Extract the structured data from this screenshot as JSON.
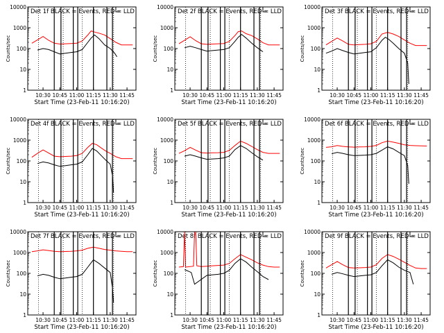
{
  "chart_data": [
    {
      "type": "line",
      "title": "Det 1f BLACK = Events, RED = LLD",
      "xlabel": "Start Time (23-Feb-11 10:16:20)",
      "ylabel": "Counts/sec",
      "yscale": "log",
      "ylim": [
        1,
        10000
      ],
      "xlim": [
        "10:16:20",
        "11:53:00"
      ],
      "xticks": [
        "10:30",
        "10:45",
        "11:00",
        "11:15",
        "11:30",
        "11:45"
      ],
      "yticks": [
        "1",
        "10",
        "100",
        "1000",
        "10000"
      ],
      "series": [
        {
          "color": "#ff0000",
          "x": [
            "10:20",
            "10:25",
            "10:30",
            "10:35",
            "10:40",
            "10:45",
            "10:50",
            "10:55",
            "11:00",
            "11:05",
            "11:10",
            "11:13",
            "11:16",
            "11:20",
            "11:25",
            "11:30",
            "11:35",
            "11:40",
            "11:45",
            "11:50"
          ],
          "values": [
            180,
            260,
            380,
            250,
            180,
            165,
            170,
            175,
            180,
            230,
            450,
            700,
            620,
            550,
            450,
            300,
            200,
            150,
            150,
            150
          ]
        },
        {
          "color": "#000000",
          "x": [
            "10:25",
            "10:30",
            "10:35",
            "10:40",
            "10:45",
            "10:50",
            "10:55",
            "11:00",
            "11:05",
            "11:10",
            "11:13",
            "11:16",
            "11:20",
            "11:25",
            "11:30",
            "11:34",
            "11:36"
          ],
          "values": [
            85,
            100,
            90,
            70,
            55,
            60,
            65,
            70,
            90,
            200,
            320,
            450,
            300,
            150,
            100,
            60,
            40
          ]
        }
      ]
    },
    {
      "type": "line",
      "title": "Det 2f BLACK = Events, RED = LLD",
      "xlabel": "Start Time (23-Feb-11 10:16:20)",
      "ylabel": "Counts/sec",
      "yscale": "log",
      "ylim": [
        1,
        10000
      ],
      "xlim": [
        "10:16:20",
        "11:53:00"
      ],
      "xticks": [
        "10:30",
        "10:45",
        "11:00",
        "11:15",
        "11:30",
        "11:45"
      ],
      "yticks": [
        "1",
        "10",
        "100",
        "1000",
        "10000"
      ],
      "series": [
        {
          "color": "#ff0000",
          "x": [
            "10:20",
            "10:25",
            "10:30",
            "10:35",
            "10:40",
            "10:45",
            "10:50",
            "10:55",
            "11:00",
            "11:05",
            "11:10",
            "11:13",
            "11:16",
            "11:20",
            "11:25",
            "11:30",
            "11:35",
            "11:40",
            "11:45",
            "11:50"
          ],
          "values": [
            170,
            250,
            370,
            240,
            170,
            160,
            165,
            170,
            175,
            220,
            420,
            650,
            700,
            520,
            420,
            290,
            190,
            150,
            150,
            150
          ]
        },
        {
          "color": "#000000",
          "x": [
            "10:25",
            "10:30",
            "10:35",
            "10:40",
            "10:45",
            "10:50",
            "10:55",
            "11:00",
            "11:05",
            "11:10",
            "11:13",
            "11:16",
            "11:20",
            "11:25",
            "11:30",
            "11:35"
          ],
          "values": [
            110,
            130,
            110,
            90,
            75,
            80,
            85,
            90,
            110,
            220,
            350,
            480,
            320,
            180,
            110,
            70
          ]
        }
      ]
    },
    {
      "type": "line",
      "title": "Det 3f BLACK = Events, RED = LLD",
      "xlabel": "Start Time (23-Feb-11 10:16:20)",
      "ylabel": "Counts/sec",
      "yscale": "log",
      "ylim": [
        1,
        10000
      ],
      "xlim": [
        "10:16:20",
        "11:53:00"
      ],
      "xticks": [
        "10:30",
        "10:45",
        "11:00",
        "11:15",
        "11:30",
        "11:45"
      ],
      "yticks": [
        "1",
        "10",
        "100",
        "1000",
        "10000"
      ],
      "series": [
        {
          "color": "#ff0000",
          "x": [
            "10:20",
            "10:25",
            "10:30",
            "10:35",
            "10:40",
            "10:45",
            "10:50",
            "10:55",
            "11:00",
            "11:05",
            "11:10",
            "11:15",
            "11:20",
            "11:25",
            "11:30",
            "11:35",
            "11:40",
            "11:45",
            "11:50"
          ],
          "values": [
            150,
            220,
            320,
            230,
            160,
            150,
            155,
            160,
            170,
            220,
            500,
            600,
            500,
            380,
            260,
            180,
            140,
            140,
            140
          ]
        },
        {
          "color": "#000000",
          "x": [
            "10:20",
            "10:25",
            "10:30",
            "10:35",
            "10:40",
            "10:45",
            "10:50",
            "10:55",
            "11:00",
            "11:05",
            "11:10",
            "11:13",
            "11:16",
            "11:20",
            "11:25",
            "11:30",
            "11:33",
            "11:34"
          ],
          "values": [
            60,
            75,
            100,
            80,
            65,
            55,
            60,
            65,
            70,
            110,
            250,
            350,
            280,
            180,
            100,
            60,
            20,
            2
          ]
        }
      ]
    },
    {
      "type": "line",
      "title": "Det 4f BLACK = Events, RED = LLD",
      "xlabel": "Start Time (23-Feb-11 10:16:20)",
      "ylabel": "Counts/sec",
      "yscale": "log",
      "ylim": [
        1,
        10000
      ],
      "xlim": [
        "10:16:20",
        "11:53:00"
      ],
      "xticks": [
        "10:30",
        "10:45",
        "11:00",
        "11:15",
        "11:30",
        "11:45"
      ],
      "yticks": [
        "1",
        "10",
        "100",
        "1000",
        "10000"
      ],
      "series": [
        {
          "color": "#ff0000",
          "x": [
            "10:20",
            "10:25",
            "10:30",
            "10:35",
            "10:40",
            "10:45",
            "10:50",
            "10:55",
            "11:00",
            "11:05",
            "11:10",
            "11:14",
            "11:18",
            "11:22",
            "11:26",
            "11:30",
            "11:35",
            "11:40",
            "11:45",
            "11:50"
          ],
          "values": [
            150,
            230,
            340,
            240,
            170,
            160,
            165,
            170,
            180,
            230,
            450,
            700,
            600,
            420,
            300,
            230,
            160,
            130,
            130,
            130
          ]
        },
        {
          "color": "#000000",
          "x": [
            "10:25",
            "10:30",
            "10:35",
            "10:40",
            "10:45",
            "10:50",
            "10:55",
            "11:00",
            "11:05",
            "11:10",
            "11:14",
            "11:18",
            "11:22",
            "11:26",
            "11:30",
            "11:32",
            "11:33"
          ],
          "values": [
            75,
            90,
            80,
            65,
            55,
            60,
            65,
            70,
            90,
            200,
            400,
            300,
            180,
            110,
            70,
            20,
            3
          ]
        }
      ]
    },
    {
      "type": "line",
      "title": "Det 5f BLACK = Events, RED = LLD",
      "xlabel": "Start Time (23-Feb-11 10:16:20)",
      "ylabel": "Counts/sec",
      "yscale": "log",
      "ylim": [
        1,
        10000
      ],
      "xlim": [
        "10:16:20",
        "11:53:00"
      ],
      "xticks": [
        "10:30",
        "10:45",
        "11:00",
        "11:15",
        "11:30",
        "11:45"
      ],
      "yticks": [
        "1",
        "10",
        "100",
        "1000",
        "10000"
      ],
      "series": [
        {
          "color": "#ff0000",
          "x": [
            "10:20",
            "10:25",
            "10:30",
            "10:35",
            "10:40",
            "10:45",
            "10:50",
            "10:55",
            "11:00",
            "11:05",
            "11:10",
            "11:15",
            "11:20",
            "11:25",
            "11:30",
            "11:35",
            "11:40",
            "11:45",
            "11:50"
          ],
          "values": [
            230,
            310,
            450,
            330,
            250,
            240,
            245,
            250,
            260,
            320,
            550,
            900,
            700,
            500,
            350,
            260,
            230,
            230,
            230
          ]
        },
        {
          "color": "#000000",
          "x": [
            "10:25",
            "10:30",
            "10:35",
            "10:40",
            "10:45",
            "10:50",
            "10:55",
            "11:00",
            "11:05",
            "11:10",
            "11:15",
            "11:20",
            "11:25",
            "11:30",
            "11:35"
          ],
          "values": [
            170,
            200,
            170,
            140,
            120,
            125,
            130,
            140,
            170,
            350,
            550,
            400,
            250,
            160,
            110
          ]
        }
      ]
    },
    {
      "type": "line",
      "title": "Det 6f BLACK = Events, RED = LLD",
      "xlabel": "Start Time (23-Feb-11 10:16:20)",
      "ylabel": "Counts/sec",
      "yscale": "log",
      "ylim": [
        1,
        10000
      ],
      "xlim": [
        "10:16:20",
        "11:53:00"
      ],
      "xticks": [
        "10:30",
        "10:45",
        "11:00",
        "11:15",
        "11:30",
        "11:45"
      ],
      "yticks": [
        "1",
        "10",
        "100",
        "1000",
        "10000"
      ],
      "series": [
        {
          "color": "#ff0000",
          "x": [
            "10:20",
            "10:25",
            "10:30",
            "10:35",
            "10:40",
            "10:45",
            "10:50",
            "10:55",
            "11:00",
            "11:05",
            "11:10",
            "11:15",
            "11:20",
            "11:25",
            "11:30",
            "11:35",
            "11:40",
            "11:45",
            "11:50"
          ],
          "values": [
            450,
            480,
            550,
            500,
            470,
            460,
            470,
            480,
            500,
            560,
            750,
            900,
            800,
            700,
            600,
            560,
            540,
            530,
            520
          ]
        },
        {
          "color": "#000000",
          "x": [
            "10:25",
            "10:30",
            "10:35",
            "10:40",
            "10:45",
            "10:50",
            "10:55",
            "11:00",
            "11:05",
            "11:10",
            "11:15",
            "11:20",
            "11:25",
            "11:30",
            "11:33",
            "11:34"
          ],
          "values": [
            220,
            260,
            230,
            200,
            180,
            185,
            190,
            200,
            230,
            330,
            480,
            380,
            260,
            180,
            60,
            8
          ]
        }
      ]
    },
    {
      "type": "line",
      "title": "Det 7f BLACK = Events, RED = LLD",
      "xlabel": "Start Time (23-Feb-11 10:16:20)",
      "ylabel": "Counts/sec",
      "yscale": "log",
      "ylim": [
        1,
        10000
      ],
      "xlim": [
        "10:16:20",
        "11:53:00"
      ],
      "xticks": [
        "10:30",
        "10:45",
        "11:00",
        "11:15",
        "11:30",
        "11:45"
      ],
      "yticks": [
        "1",
        "10",
        "100",
        "1000",
        "10000"
      ],
      "series": [
        {
          "color": "#ff0000",
          "x": [
            "10:20",
            "10:25",
            "10:30",
            "10:35",
            "10:40",
            "10:45",
            "10:50",
            "10:55",
            "11:00",
            "11:05",
            "11:10",
            "11:15",
            "11:20",
            "11:25",
            "11:30",
            "11:35",
            "11:40",
            "11:45",
            "11:50"
          ],
          "values": [
            1100,
            1200,
            1350,
            1250,
            1150,
            1100,
            1120,
            1150,
            1200,
            1300,
            1600,
            1800,
            1600,
            1400,
            1300,
            1200,
            1150,
            1100,
            1100
          ]
        },
        {
          "color": "#000000",
          "x": [
            "10:25",
            "10:30",
            "10:35",
            "10:40",
            "10:45",
            "10:50",
            "10:55",
            "11:00",
            "11:05",
            "11:10",
            "11:15",
            "11:20",
            "11:25",
            "11:30",
            "11:32",
            "11:33"
          ],
          "values": [
            75,
            90,
            80,
            65,
            55,
            60,
            65,
            70,
            90,
            200,
            450,
            300,
            180,
            110,
            20,
            4
          ]
        }
      ]
    },
    {
      "type": "line",
      "title": "Det 8f BLACK = Events, RED = LLD",
      "xlabel": "Start Time (23-Feb-11 10:16:20)",
      "ylabel": "Counts/sec",
      "yscale": "log",
      "ylim": [
        1,
        10000
      ],
      "xlim": [
        "10:16:20",
        "11:53:00"
      ],
      "xticks": [
        "10:30",
        "10:45",
        "11:00",
        "11:15",
        "11:30",
        "11:45"
      ],
      "yticks": [
        "1",
        "10",
        "100",
        "1000",
        "10000"
      ],
      "series": [
        {
          "color": "#ff0000",
          "x": [
            "10:20",
            "10:24",
            "10:25",
            "10:26",
            "10:33",
            "10:34",
            "10:35",
            "10:36",
            "10:40",
            "10:45",
            "10:50",
            "10:55",
            "11:00",
            "11:05",
            "11:10",
            "11:15",
            "11:20",
            "11:25",
            "11:30",
            "11:35",
            "11:40",
            "11:45",
            "11:50"
          ],
          "values": [
            200,
            210,
            10000,
            200,
            220,
            10000,
            10000,
            230,
            210,
            220,
            230,
            240,
            250,
            300,
            500,
            800,
            600,
            450,
            320,
            250,
            210,
            200,
            200
          ]
        },
        {
          "color": "#000000",
          "x": [
            "10:25",
            "10:28",
            "10:31",
            "10:34",
            "10:45",
            "10:50",
            "10:55",
            "11:00",
            "11:05",
            "11:10",
            "11:15",
            "11:20",
            "11:25",
            "11:30",
            "11:35",
            "11:40"
          ],
          "values": [
            150,
            130,
            110,
            30,
            80,
            85,
            90,
            100,
            140,
            300,
            500,
            350,
            200,
            120,
            70,
            50
          ]
        }
      ]
    },
    {
      "type": "line",
      "title": "Det 9f BLACK = Events, RED = LLD",
      "xlabel": "Start Time (23-Feb-11 10:16:20)",
      "ylabel": "Counts/sec",
      "yscale": "log",
      "ylim": [
        1,
        10000
      ],
      "xlim": [
        "10:16:20",
        "11:53:00"
      ],
      "xticks": [
        "10:30",
        "10:45",
        "11:00",
        "11:15",
        "11:30",
        "11:45"
      ],
      "yticks": [
        "1",
        "10",
        "100",
        "1000",
        "10000"
      ],
      "series": [
        {
          "color": "#ff0000",
          "x": [
            "10:20",
            "10:25",
            "10:30",
            "10:35",
            "10:40",
            "10:45",
            "10:50",
            "10:55",
            "11:00",
            "11:05",
            "11:10",
            "11:15",
            "11:20",
            "11:25",
            "11:30",
            "11:35",
            "11:40",
            "11:45",
            "11:50"
          ],
          "values": [
            180,
            260,
            370,
            260,
            190,
            180,
            185,
            190,
            200,
            260,
            520,
            800,
            650,
            480,
            340,
            240,
            180,
            170,
            170
          ]
        },
        {
          "color": "#000000",
          "x": [
            "10:25",
            "10:30",
            "10:35",
            "10:40",
            "10:45",
            "10:50",
            "10:55",
            "11:00",
            "11:05",
            "11:10",
            "11:15",
            "11:20",
            "11:25",
            "11:30",
            "11:35",
            "11:38"
          ],
          "values": [
            90,
            110,
            95,
            80,
            70,
            75,
            80,
            85,
            110,
            230,
            450,
            320,
            200,
            140,
            110,
            30
          ]
        }
      ]
    }
  ],
  "markers": {
    "solid_vertical": [
      "10:40",
      "10:46",
      "10:57",
      "11:01",
      "11:15",
      "11:27",
      "11:32"
    ],
    "dotted_vertical": [
      "10:26",
      "10:48",
      "11:05",
      "11:33"
    ],
    "bracket_at": "11:35"
  },
  "colors": {
    "lld": "#ff0000",
    "events": "#000000",
    "axis": "#000000",
    "background": "#ffffff"
  }
}
